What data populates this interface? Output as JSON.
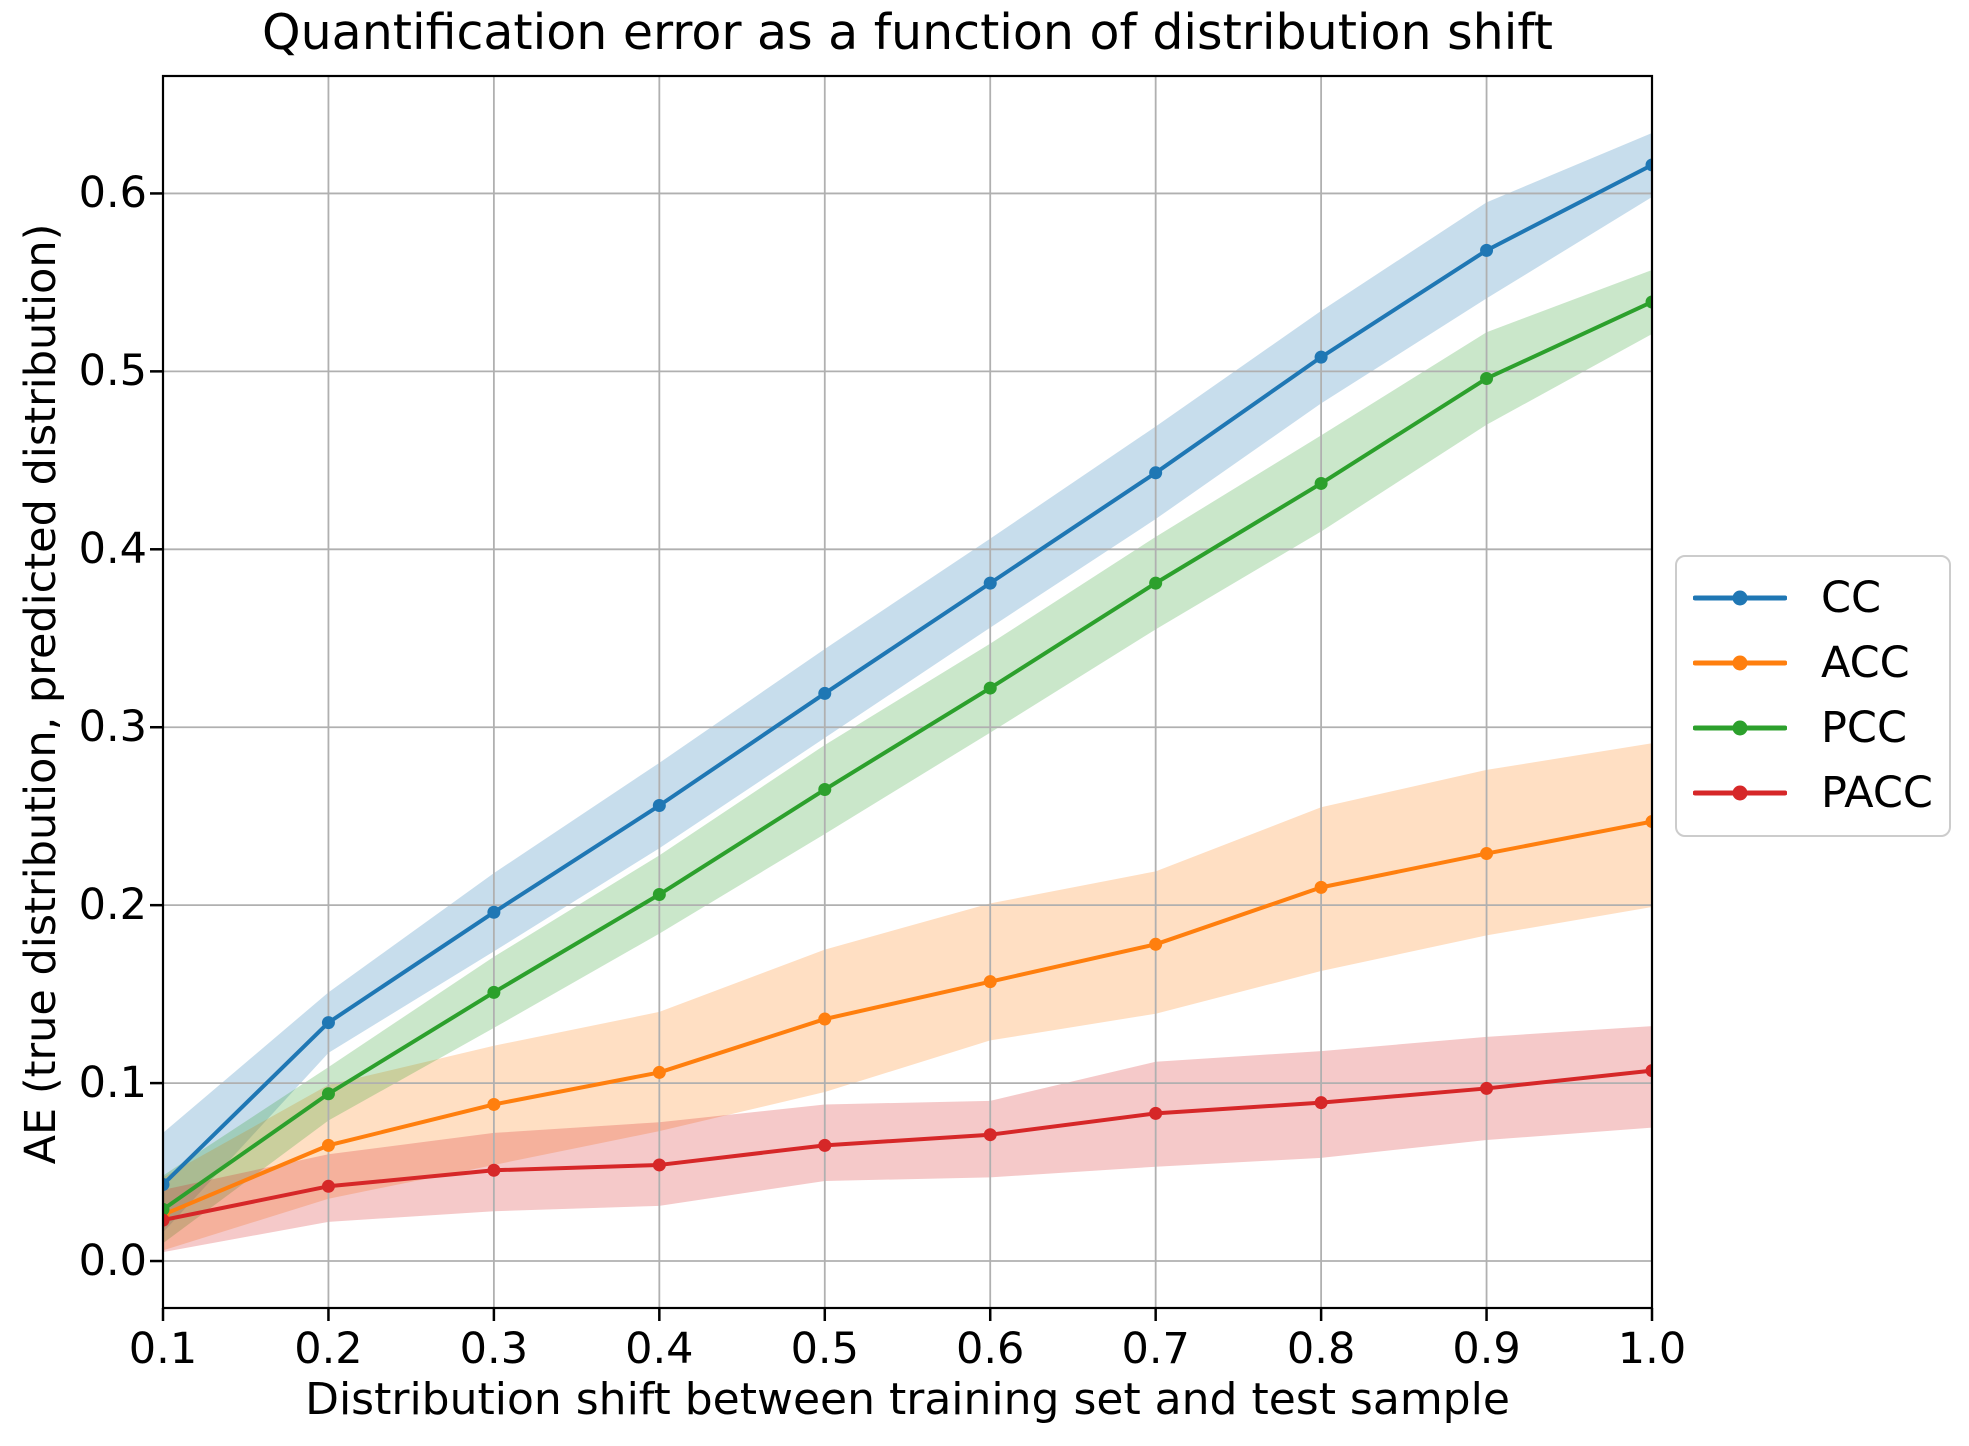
{
  "chart_data": {
    "type": "line",
    "title": "Quantification error as a function of distribution shift",
    "xlabel": "Distribution shift between training set and test sample",
    "ylabel": "AE (true distribution, predicted distribution)",
    "x": [
      0.1,
      0.2,
      0.3,
      0.4,
      0.5,
      0.6,
      0.7,
      0.8,
      0.9,
      1.0
    ],
    "x_tick_labels": [
      "0.1",
      "0.2",
      "0.3",
      "0.4",
      "0.5",
      "0.6",
      "0.7",
      "0.8",
      "0.9",
      "1.0"
    ],
    "y_ticks": [
      0.0,
      0.1,
      0.2,
      0.3,
      0.4,
      0.5,
      0.6
    ],
    "y_tick_labels": [
      "0.0",
      "0.1",
      "0.2",
      "0.3",
      "0.4",
      "0.5",
      "0.6"
    ],
    "xlim": [
      0.1,
      1.0
    ],
    "ylim": [
      -0.0264,
      0.666
    ],
    "grid": true,
    "grid_color": "#b0b0b0",
    "legend_position": "outside-right",
    "band_alpha": 0.25,
    "series": [
      {
        "name": "CC",
        "color": "#1f77b4",
        "values": [
          0.043,
          0.134,
          0.196,
          0.256,
          0.319,
          0.381,
          0.443,
          0.508,
          0.568,
          0.616
        ],
        "band_lower": [
          0.016,
          0.117,
          0.174,
          0.232,
          0.294,
          0.356,
          0.417,
          0.482,
          0.541,
          0.598
        ],
        "band_upper": [
          0.072,
          0.151,
          0.218,
          0.28,
          0.344,
          0.406,
          0.469,
          0.534,
          0.595,
          0.634
        ]
      },
      {
        "name": "ACC",
        "color": "#ff7f0e",
        "values": [
          0.026,
          0.065,
          0.088,
          0.106,
          0.136,
          0.157,
          0.178,
          0.21,
          0.229,
          0.247
        ],
        "band_lower": [
          0.006,
          0.035,
          0.054,
          0.073,
          0.095,
          0.124,
          0.139,
          0.163,
          0.183,
          0.199
        ],
        "band_upper": [
          0.047,
          0.099,
          0.121,
          0.14,
          0.175,
          0.201,
          0.219,
          0.255,
          0.276,
          0.291
        ]
      },
      {
        "name": "PCC",
        "color": "#2ca02c",
        "values": [
          0.029,
          0.094,
          0.151,
          0.206,
          0.265,
          0.322,
          0.381,
          0.437,
          0.496,
          0.539
        ],
        "band_lower": [
          0.01,
          0.079,
          0.131,
          0.184,
          0.24,
          0.297,
          0.355,
          0.41,
          0.47,
          0.521
        ],
        "band_upper": [
          0.048,
          0.109,
          0.171,
          0.228,
          0.29,
          0.347,
          0.407,
          0.464,
          0.522,
          0.557
        ]
      },
      {
        "name": "PACC",
        "color": "#d62728",
        "values": [
          0.023,
          0.042,
          0.051,
          0.054,
          0.065,
          0.071,
          0.083,
          0.089,
          0.097,
          0.107
        ],
        "band_lower": [
          0.005,
          0.022,
          0.028,
          0.031,
          0.045,
          0.047,
          0.053,
          0.058,
          0.068,
          0.075
        ],
        "band_upper": [
          0.04,
          0.06,
          0.072,
          0.078,
          0.088,
          0.09,
          0.112,
          0.118,
          0.126,
          0.132
        ]
      }
    ]
  }
}
